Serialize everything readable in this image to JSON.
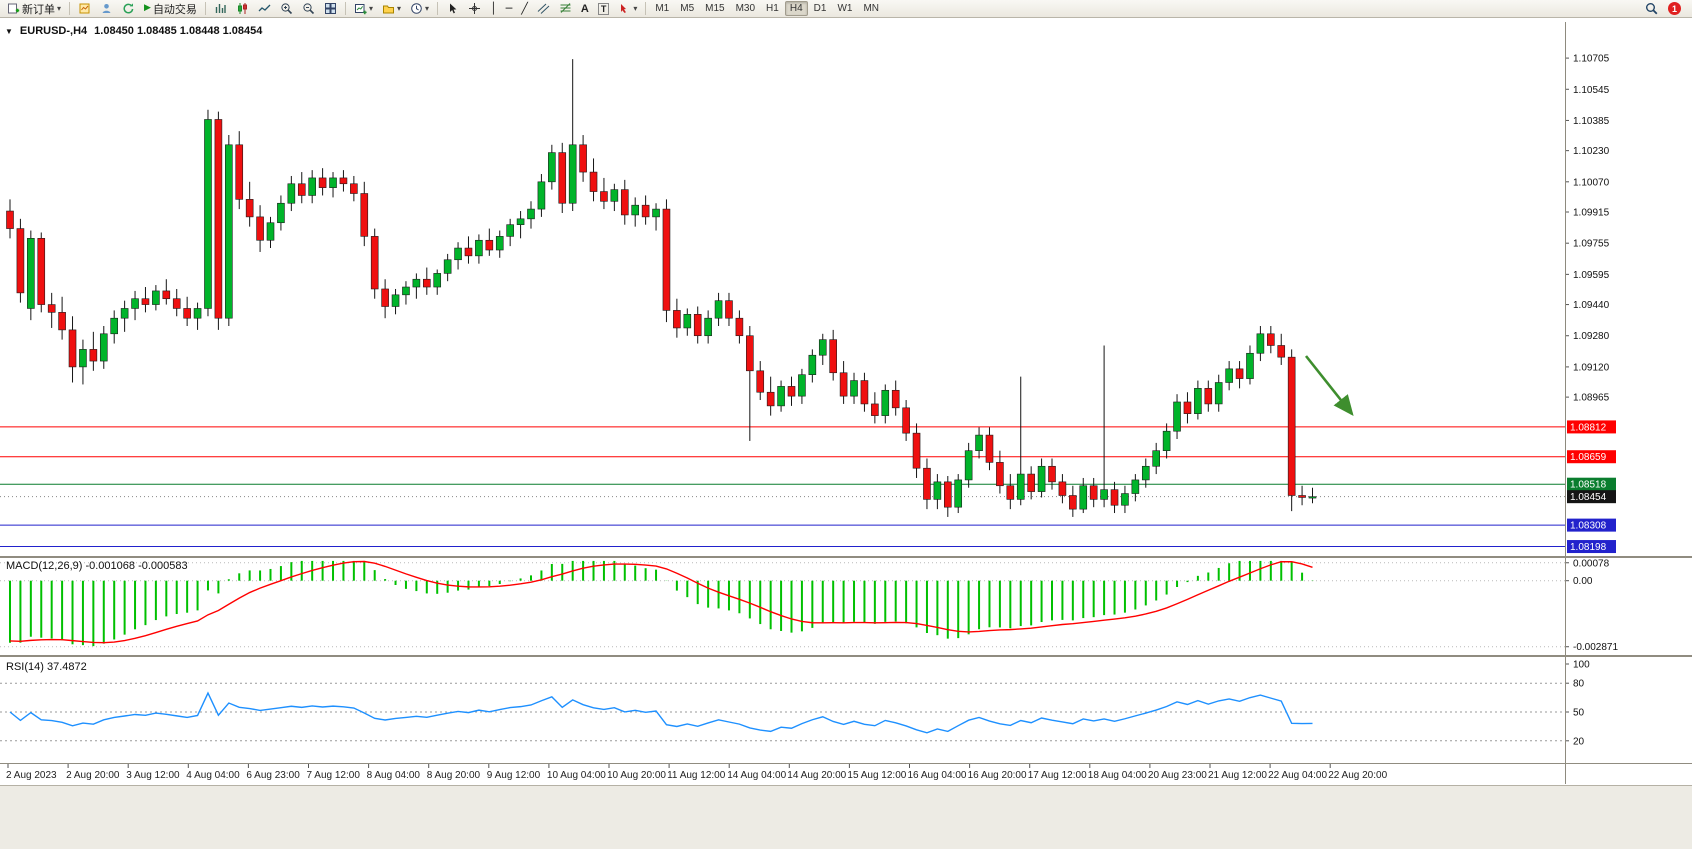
{
  "toolbar": {
    "new_order_label": "新订单",
    "autotrading_label": "自动交易",
    "text_tool": "A",
    "label_tool": "T",
    "glyphs": {
      "play": "▶",
      "caret": "▾",
      "vline": "│",
      "hline": "─",
      "trendline": "╱"
    },
    "timeframes": [
      {
        "label": "M1",
        "active": false
      },
      {
        "label": "M5",
        "active": false
      },
      {
        "label": "M15",
        "active": false
      },
      {
        "label": "M30",
        "active": false
      },
      {
        "label": "H1",
        "active": false
      },
      {
        "label": "H4",
        "active": true
      },
      {
        "label": "D1",
        "active": false
      },
      {
        "label": "W1",
        "active": false
      },
      {
        "label": "MN",
        "active": false
      }
    ],
    "badge_count": "1"
  },
  "symbol_header": {
    "collapse_glyph": "▼",
    "symbol": "EURUSD-,H4",
    "ohlc": "1.08450 1.08485 1.08448 1.08454"
  },
  "chart_data": {
    "type": "candlestick",
    "title": "EURUSD-,H4",
    "price_range": [
      1.0817,
      1.1088
    ],
    "price_tick_labels": [
      "1.10705",
      "1.10545",
      "1.10385",
      "1.10230",
      "1.10070",
      "1.09915",
      "1.09755",
      "1.09595",
      "1.09440",
      "1.09280",
      "1.09120",
      "1.08965"
    ],
    "time_labels": [
      "2 Aug 2023",
      "2 Aug 20:00",
      "3 Aug 12:00",
      "4 Aug 04:00",
      "6 Aug 23:00",
      "7 Aug 12:00",
      "8 Aug 04:00",
      "8 Aug 20:00",
      "9 Aug 12:00",
      "10 Aug 04:00",
      "10 Aug 20:00",
      "11 Aug 12:00",
      "14 Aug 04:00",
      "14 Aug 20:00",
      "15 Aug 12:00",
      "16 Aug 04:00",
      "16 Aug 20:00",
      "17 Aug 12:00",
      "18 Aug 04:00",
      "20 Aug 23:00",
      "21 Aug 12:00",
      "22 Aug 04:00",
      "22 Aug 20:00"
    ],
    "up_color": "#00b42a",
    "down_color": "#ef1010",
    "levels": [
      {
        "label": "1.08812",
        "price": 1.08812,
        "color": "#ff0000"
      },
      {
        "label": "1.08659",
        "price": 1.08659,
        "color": "#ff0000"
      },
      {
        "label": "1.08518",
        "price": 1.08518,
        "color": "#0a7d2e"
      },
      {
        "label": "1.08308",
        "price": 1.08308,
        "color": "#2222cc"
      },
      {
        "label": "1.08198",
        "price": 1.08198,
        "color": "#2222cc"
      }
    ],
    "bid": {
      "label": "1.08454",
      "price": 1.08454,
      "bg": "#141414"
    },
    "annotation": {
      "type": "arrow",
      "color": "#3e8e2e",
      "from": [
        1306,
        356
      ],
      "to": [
        1352,
        414
      ]
    },
    "indicators": {
      "macd": {
        "label": "MACD(12,26,9) -0.001068 -0.000583",
        "params": [
          12,
          26,
          9
        ],
        "values_text": [
          "-0.001068",
          "-0.000583"
        ],
        "ticks": [
          {
            "label": "0.00078",
            "value": 0.00078
          },
          {
            "label": "0.00",
            "value": 0
          },
          {
            "label": "-0.002871",
            "value": -0.002871
          }
        ],
        "histogram_color": "#00c000",
        "signal_color": "#ff0000"
      },
      "rsi": {
        "label": "RSI(14) 37.4872",
        "period": 14,
        "value": 37.4872,
        "ticks": [
          {
            "label": "100",
            "value": 100
          },
          {
            "label": "80",
            "value": 80
          },
          {
            "label": "50",
            "value": 50
          },
          {
            "label": "20",
            "value": 20
          }
        ],
        "levels": [
          80,
          50,
          20
        ],
        "line_color": "#1e90ff"
      }
    },
    "ohlc": [
      [
        1.0992,
        1.0998,
        1.0978,
        1.0983
      ],
      [
        1.0983,
        1.0988,
        1.0945,
        1.095
      ],
      [
        1.0942,
        1.0982,
        1.0936,
        1.0978
      ],
      [
        1.0978,
        1.0981,
        1.094,
        1.0944
      ],
      [
        1.0944,
        1.095,
        1.0932,
        1.094
      ],
      [
        1.094,
        1.0948,
        1.0926,
        1.0931
      ],
      [
        1.0931,
        1.0938,
        1.0904,
        1.0912
      ],
      [
        1.0912,
        1.0926,
        1.0903,
        1.0921
      ],
      [
        1.0921,
        1.093,
        1.091,
        1.0915
      ],
      [
        1.0915,
        1.0933,
        1.0911,
        1.0929
      ],
      [
        1.0929,
        1.0941,
        1.0924,
        1.0937
      ],
      [
        1.0937,
        1.0946,
        1.093,
        1.0942
      ],
      [
        1.0942,
        1.0951,
        1.0936,
        1.0947
      ],
      [
        1.0947,
        1.0953,
        1.094,
        1.0944
      ],
      [
        1.0944,
        1.0954,
        1.0941,
        1.0951
      ],
      [
        1.0951,
        1.0957,
        1.0944,
        1.0947
      ],
      [
        1.0947,
        1.0952,
        1.0938,
        1.0942
      ],
      [
        1.0942,
        1.0948,
        1.0933,
        1.0937
      ],
      [
        1.0937,
        1.0945,
        1.0931,
        1.0942
      ],
      [
        1.0942,
        1.1044,
        1.0938,
        1.1039
      ],
      [
        1.1039,
        1.1043,
        1.0931,
        1.0937
      ],
      [
        1.0937,
        1.1031,
        1.0933,
        1.1026
      ],
      [
        1.1026,
        1.1033,
        1.0993,
        1.0998
      ],
      [
        1.0998,
        1.1007,
        1.0984,
        1.0989
      ],
      [
        1.0989,
        1.0995,
        1.0971,
        1.0977
      ],
      [
        1.0977,
        1.0989,
        1.0973,
        1.0986
      ],
      [
        1.0986,
        1.1,
        1.0982,
        1.0996
      ],
      [
        1.0996,
        1.101,
        1.0992,
        1.1006
      ],
      [
        1.1006,
        1.1012,
        1.0996,
        1.1
      ],
      [
        1.1,
        1.1013,
        1.0996,
        1.1009
      ],
      [
        1.1009,
        1.1014,
        1.1,
        1.1004
      ],
      [
        1.1004,
        1.1012,
        1.0999,
        1.1009
      ],
      [
        1.1009,
        1.1013,
        1.1002,
        1.1006
      ],
      [
        1.1006,
        1.101,
        1.0997,
        1.1001
      ],
      [
        1.1001,
        1.1007,
        1.0974,
        1.0979
      ],
      [
        1.0979,
        1.0983,
        1.0947,
        1.0952
      ],
      [
        1.0952,
        1.0957,
        1.0937,
        1.0943
      ],
      [
        1.0943,
        1.0952,
        1.0939,
        1.0949
      ],
      [
        1.0949,
        1.0956,
        1.0944,
        1.0953
      ],
      [
        1.0953,
        1.096,
        1.0947,
        1.0957
      ],
      [
        1.0957,
        1.0963,
        1.0949,
        1.0953
      ],
      [
        1.0953,
        1.0962,
        1.0949,
        1.096
      ],
      [
        1.096,
        1.097,
        1.0956,
        1.0967
      ],
      [
        1.0967,
        1.0976,
        1.0962,
        1.0973
      ],
      [
        1.0973,
        1.0979,
        1.0965,
        1.0969
      ],
      [
        1.0969,
        1.098,
        1.0965,
        1.0977
      ],
      [
        1.0977,
        1.0983,
        1.0969,
        1.0972
      ],
      [
        1.0972,
        1.0982,
        1.0968,
        1.0979
      ],
      [
        1.0979,
        1.0988,
        1.0974,
        1.0985
      ],
      [
        1.0985,
        1.0992,
        1.0978,
        1.0988
      ],
      [
        1.0988,
        1.0997,
        1.0983,
        1.0993
      ],
      [
        1.0993,
        1.1011,
        1.0989,
        1.1007
      ],
      [
        1.1007,
        1.1026,
        1.1003,
        1.1022
      ],
      [
        1.1022,
        1.1027,
        1.0991,
        1.0996
      ],
      [
        1.0996,
        1.107,
        1.0992,
        1.1026
      ],
      [
        1.1026,
        1.1031,
        1.1007,
        1.1012
      ],
      [
        1.1012,
        1.1019,
        1.0997,
        1.1002
      ],
      [
        1.1002,
        1.1009,
        1.0993,
        1.0997
      ],
      [
        1.0997,
        1.1006,
        1.0992,
        1.1003
      ],
      [
        1.1003,
        1.1008,
        1.0985,
        1.099
      ],
      [
        1.099,
        1.0999,
        1.0984,
        1.0995
      ],
      [
        1.0995,
        1.1,
        1.0985,
        1.0989
      ],
      [
        1.0989,
        1.0996,
        1.0982,
        1.0993
      ],
      [
        1.0993,
        1.0998,
        1.0935,
        1.0941
      ],
      [
        1.0941,
        1.0947,
        1.0927,
        1.0932
      ],
      [
        1.0932,
        1.0942,
        1.0928,
        1.0939
      ],
      [
        1.0939,
        1.0943,
        1.0924,
        1.0928
      ],
      [
        1.0928,
        1.0941,
        1.0924,
        1.0937
      ],
      [
        1.0937,
        1.095,
        1.0933,
        1.0946
      ],
      [
        1.0946,
        1.095,
        1.0933,
        1.0937
      ],
      [
        1.0937,
        1.0941,
        1.0924,
        1.0928
      ],
      [
        1.0928,
        1.0933,
        1.0874,
        1.091
      ],
      [
        1.091,
        1.0915,
        1.0895,
        1.0899
      ],
      [
        1.0899,
        1.0907,
        1.0887,
        1.0892
      ],
      [
        1.0892,
        1.0905,
        1.0889,
        1.0902
      ],
      [
        1.0902,
        1.0907,
        1.0892,
        1.0897
      ],
      [
        1.0897,
        1.0911,
        1.0893,
        1.0908
      ],
      [
        1.0908,
        1.0921,
        1.0904,
        1.0918
      ],
      [
        1.0918,
        1.0929,
        1.0913,
        1.0926
      ],
      [
        1.0926,
        1.0931,
        1.0905,
        1.0909
      ],
      [
        1.0909,
        1.0915,
        1.0893,
        1.0897
      ],
      [
        1.0897,
        1.0909,
        1.0893,
        1.0905
      ],
      [
        1.0905,
        1.0909,
        1.0889,
        1.0893
      ],
      [
        1.0893,
        1.0899,
        1.0883,
        1.0887
      ],
      [
        1.0887,
        1.0903,
        1.0883,
        1.09
      ],
      [
        1.09,
        1.0905,
        1.0887,
        1.0891
      ],
      [
        1.0891,
        1.0895,
        1.0874,
        1.0878
      ],
      [
        1.0878,
        1.0883,
        1.0855,
        1.086
      ],
      [
        1.086,
        1.0865,
        1.0839,
        1.0844
      ],
      [
        1.0844,
        1.0857,
        1.0839,
        1.0853
      ],
      [
        1.0853,
        1.0856,
        1.0835,
        1.084
      ],
      [
        1.084,
        1.0857,
        1.0837,
        1.0854
      ],
      [
        1.0854,
        1.0873,
        1.085,
        1.0869
      ],
      [
        1.0869,
        1.0881,
        1.0865,
        1.0877
      ],
      [
        1.0877,
        1.0881,
        1.0859,
        1.0863
      ],
      [
        1.0863,
        1.0869,
        1.0847,
        1.0851
      ],
      [
        1.0851,
        1.0857,
        1.0839,
        1.0844
      ],
      [
        1.0844,
        1.0907,
        1.0841,
        1.0857
      ],
      [
        1.0857,
        1.0861,
        1.0844,
        1.0848
      ],
      [
        1.0848,
        1.0865,
        1.0845,
        1.0861
      ],
      [
        1.0861,
        1.0865,
        1.0849,
        1.0853
      ],
      [
        1.0853,
        1.0857,
        1.0842,
        1.0846
      ],
      [
        1.0846,
        1.0851,
        1.0835,
        1.0839
      ],
      [
        1.0839,
        1.0855,
        1.0837,
        1.0851
      ],
      [
        1.0851,
        1.0855,
        1.084,
        1.0844
      ],
      [
        1.0844,
        1.0923,
        1.084,
        1.0849
      ],
      [
        1.0849,
        1.0853,
        1.0837,
        1.0841
      ],
      [
        1.0841,
        1.0851,
        1.0837,
        1.0847
      ],
      [
        1.0847,
        1.0857,
        1.0843,
        1.0854
      ],
      [
        1.0854,
        1.0865,
        1.085,
        1.0861
      ],
      [
        1.0861,
        1.0873,
        1.0857,
        1.0869
      ],
      [
        1.0869,
        1.0883,
        1.0865,
        1.0879
      ],
      [
        1.0879,
        1.0898,
        1.0875,
        1.0894
      ],
      [
        1.0894,
        1.0899,
        1.0883,
        1.0888
      ],
      [
        1.0888,
        1.0905,
        1.0885,
        1.0901
      ],
      [
        1.0901,
        1.0905,
        1.0889,
        1.0893
      ],
      [
        1.0893,
        1.0908,
        1.0889,
        1.0904
      ],
      [
        1.0904,
        1.0915,
        1.09,
        1.0911
      ],
      [
        1.0911,
        1.0915,
        1.0901,
        1.0906
      ],
      [
        1.0906,
        1.0923,
        1.0903,
        1.0919
      ],
      [
        1.0919,
        1.0933,
        1.0915,
        1.0929
      ],
      [
        1.0929,
        1.0933,
        1.0919,
        1.0923
      ],
      [
        1.0923,
        1.0929,
        1.0913,
        1.0917
      ],
      [
        1.0917,
        1.0921,
        1.0838,
        1.0846
      ],
      [
        1.0846,
        1.0851,
        1.0841,
        1.0845
      ],
      [
        1.0845,
        1.085,
        1.0842,
        1.08454
      ]
    ]
  }
}
